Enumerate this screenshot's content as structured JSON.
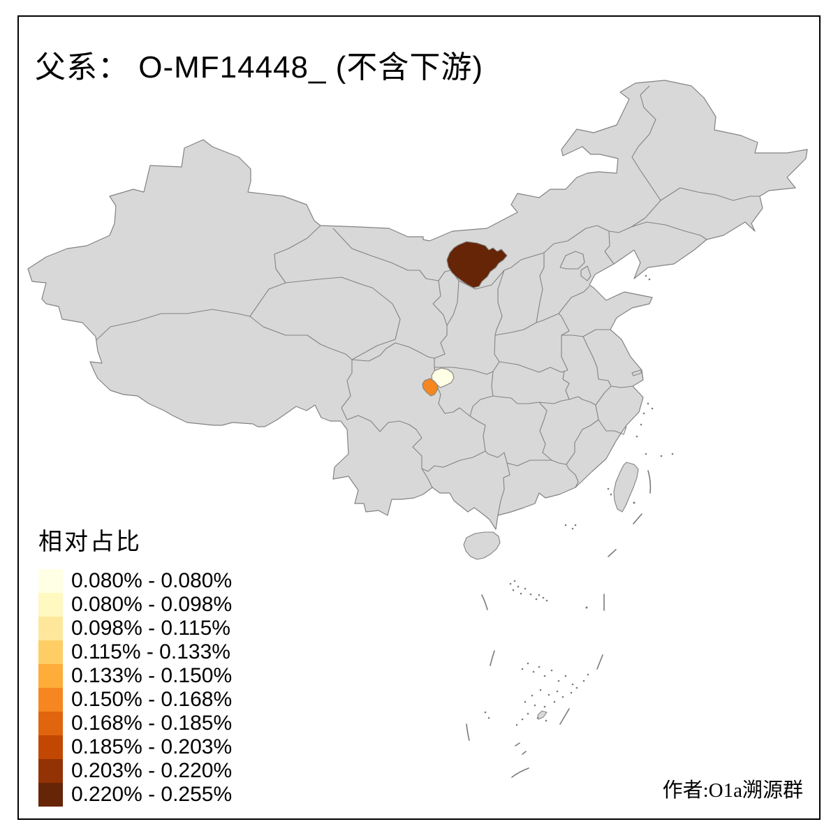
{
  "title": {
    "parts": [
      "父系：",
      " O-MF14448_ (",
      "不含下游",
      ")"
    ]
  },
  "legend": {
    "title": "相对占比",
    "items": [
      {
        "label": "0.080% - 0.080%",
        "color": "#FFFFE5"
      },
      {
        "label": "0.080% - 0.098%",
        "color": "#FFF8C1"
      },
      {
        "label": "0.098% - 0.115%",
        "color": "#FEE79B"
      },
      {
        "label": "0.115% - 0.133%",
        "color": "#FECE65"
      },
      {
        "label": "0.133% - 0.150%",
        "color": "#FEAC3A"
      },
      {
        "label": "0.150% - 0.168%",
        "color": "#F68720"
      },
      {
        "label": "0.168% - 0.185%",
        "color": "#E1640E"
      },
      {
        "label": "0.185% - 0.203%",
        "color": "#C14702"
      },
      {
        "label": "0.203% - 0.220%",
        "color": "#933204"
      },
      {
        "label": "0.220% - 0.255%",
        "color": "#662506"
      }
    ]
  },
  "attribution": "作者:O1a溯源群",
  "map": {
    "base_fill": "#D8D8D8",
    "border_color": "#828282",
    "sea_mark_color": "#7A7A7A",
    "regions": [
      {
        "id": "region-dark-brown",
        "color": "#662506"
      },
      {
        "id": "region-cream",
        "color": "#FFFFE5"
      },
      {
        "id": "region-orange",
        "color": "#F68720"
      }
    ]
  }
}
